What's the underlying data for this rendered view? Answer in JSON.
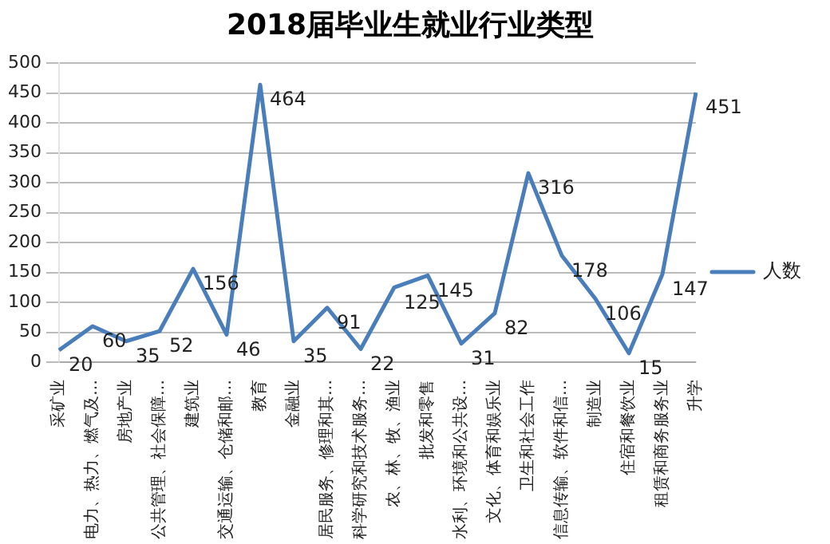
{
  "chart_data": {
    "type": "line",
    "title": "2018届毕业生就业行业类型",
    "categories": [
      "采矿业",
      "电力、热力、燃气及…",
      "房地产业",
      "公共管理、社会保障…",
      "建筑业",
      "交通运输、仓储和邮…",
      "教育",
      "金融业",
      "居民服务、修理和其…",
      "科学研究和技术服务…",
      "农、林、牧、渔业",
      "批发和零售",
      "水利、环境和公共设…",
      "文化、体育和娱乐业",
      "卫生和社会工作",
      "信息传输、软件和信…",
      "制造业",
      "住宿和餐饮业",
      "租赁和商务服务业",
      "升学"
    ],
    "series": [
      {
        "name": "人数",
        "color": "#4a7ebb",
        "values": [
          20,
          60,
          35,
          52,
          156,
          46,
          464,
          35,
          91,
          22,
          125,
          145,
          31,
          82,
          316,
          178,
          106,
          15,
          147,
          451
        ]
      }
    ],
    "ylim": [
      0,
      500
    ],
    "yticks": [
      0,
      50,
      100,
      150,
      200,
      250,
      300,
      350,
      400,
      450,
      500
    ],
    "grid": "y",
    "legend": "right",
    "data_labels": true,
    "marker": "none",
    "line_style": "solid"
  }
}
